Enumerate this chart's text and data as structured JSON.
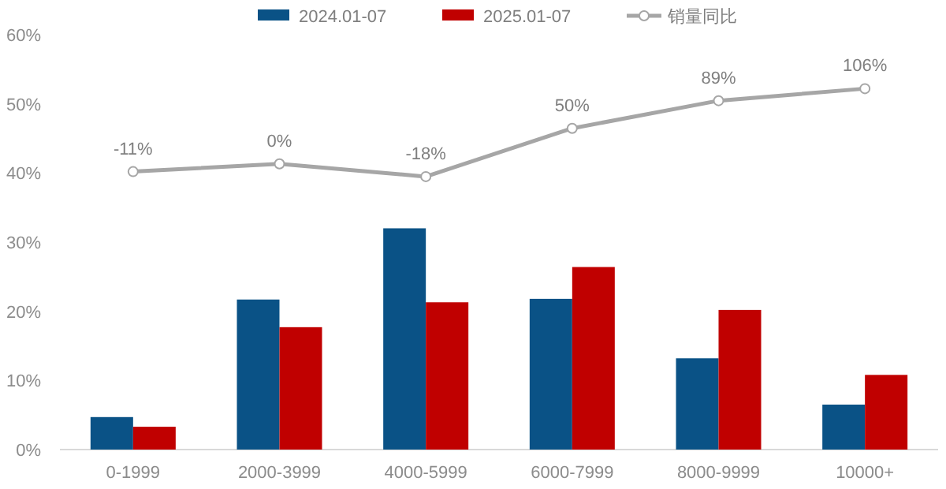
{
  "chart_data": {
    "type": "bar",
    "categories": [
      "0-1999",
      "2000-3999",
      "4000-5999",
      "6000-7999",
      "8000-9999",
      "10000+"
    ],
    "series": [
      {
        "name": "2024.01-07",
        "color": "#0a5286",
        "values": [
          4.7,
          21.7,
          32,
          21.8,
          13.2,
          6.5
        ]
      },
      {
        "name": "2025.01-07",
        "color": "#c00000",
        "values": [
          3.3,
          17.7,
          21.3,
          26.4,
          20.2,
          10.8
        ]
      },
      {
        "name": "销量同比",
        "type": "line",
        "axis": "y2",
        "color": "#a6a6a6",
        "marker": "circle",
        "values": [
          -11,
          0,
          -18,
          50,
          89,
          106
        ],
        "value_labels": [
          "-11%",
          "0%",
          "-18%",
          "50%",
          "89%",
          "106%"
        ]
      }
    ],
    "ylim": [
      0,
      60
    ],
    "yticks": [
      {
        "value": 0,
        "label": "0%"
      },
      {
        "value": 10,
        "label": "10%"
      },
      {
        "value": 20,
        "label": "20%"
      },
      {
        "value": 30,
        "label": "30%"
      },
      {
        "value": 40,
        "label": "40%"
      },
      {
        "value": 50,
        "label": "50%"
      },
      {
        "value": 60,
        "label": "60%"
      }
    ],
    "tick_labels": "y",
    "legend": "top",
    "grid": false
  }
}
